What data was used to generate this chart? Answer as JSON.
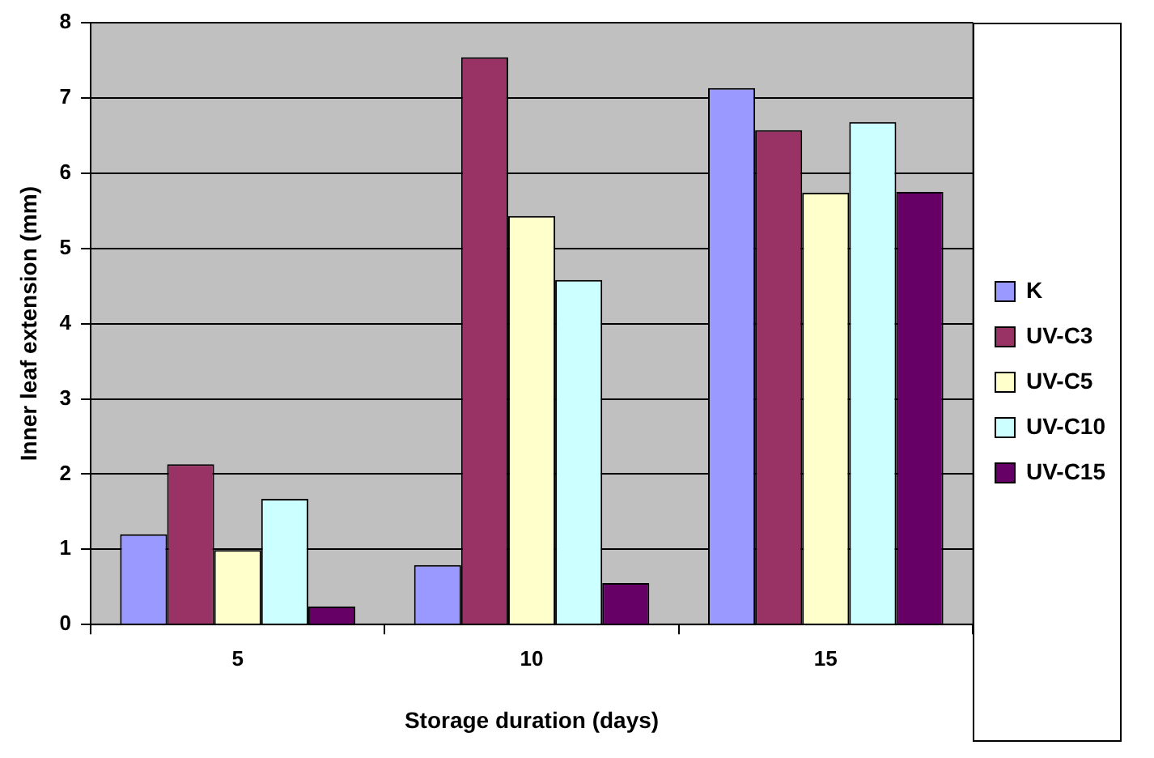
{
  "chart_data": {
    "type": "bar",
    "xlabel": "Storage duration (days)",
    "ylabel": "Inner leaf extension (mm)",
    "categories": [
      "5",
      "10",
      "15"
    ],
    "series": [
      {
        "name": "K",
        "color": "#9999ff",
        "values": [
          1.2,
          0.79,
          7.13
        ]
      },
      {
        "name": "UV-C3",
        "color": "#993366",
        "values": [
          2.13,
          7.54,
          6.57
        ]
      },
      {
        "name": "UV-C5",
        "color": "#ffffcc",
        "values": [
          0.99,
          5.43,
          5.74
        ]
      },
      {
        "name": "UV-C10",
        "color": "#ccffff",
        "values": [
          1.67,
          4.58,
          6.68
        ]
      },
      {
        "name": "UV-C15",
        "color": "#660066",
        "values": [
          0.24,
          0.55,
          5.75
        ]
      }
    ],
    "ylim": [
      0,
      8
    ],
    "yticks": [
      0,
      1,
      2,
      3,
      4,
      5,
      6,
      7,
      8
    ],
    "grid": "y",
    "legend": "right"
  }
}
